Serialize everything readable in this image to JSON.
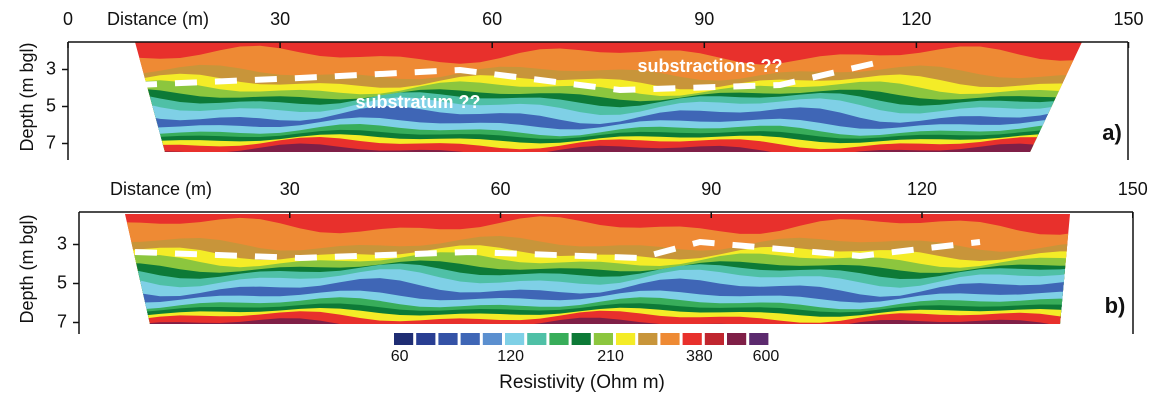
{
  "panels": [
    {
      "x_label": "Distance (m)",
      "y_label": "Depth (m bgl)",
      "xticks": [
        0,
        30,
        60,
        90,
        120,
        150
      ],
      "yticks": [
        3,
        5,
        7
      ],
      "annotations": [
        "substractions ??",
        "substratum ??"
      ],
      "panel_label": "a)"
    },
    {
      "x_label": "Distance (m)",
      "y_label": "Depth (m bgl)",
      "xticks": [
        30,
        60,
        90,
        120,
        150
      ],
      "yticks": [
        3,
        5,
        7
      ],
      "annotations": [],
      "panel_label": "b)"
    }
  ],
  "colorbar": {
    "title": "Resistivity (Ohm m)",
    "ticks": [
      60,
      120,
      210,
      380,
      600
    ],
    "colors": [
      "#1f2d73",
      "#293e92",
      "#3452a6",
      "#3f66b6",
      "#5b8fcf",
      "#7fd0e6",
      "#4fc0a6",
      "#38ad5a",
      "#0d7a37",
      "#8cc63e",
      "#f4ec27",
      "#c8953a",
      "#ee8a34",
      "#e8302c",
      "#c0262f",
      "#7f1f47",
      "#5c2a6e"
    ]
  }
}
